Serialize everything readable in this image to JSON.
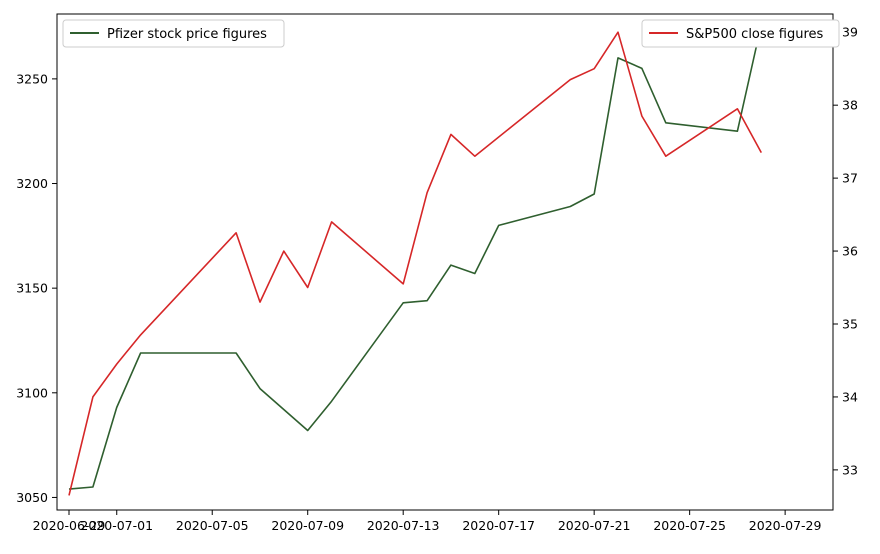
{
  "chart_data": {
    "type": "line",
    "x_axis": {
      "type": "date",
      "range": [
        "2020-06-29",
        "2020-07-30"
      ],
      "ticks": [
        "2020-06-29",
        "2020-07-01",
        "2020-07-05",
        "2020-07-09",
        "2020-07-13",
        "2020-07-17",
        "2020-07-21",
        "2020-07-25",
        "2020-07-29"
      ]
    },
    "y_left": {
      "range": [
        3044,
        3281
      ],
      "ticks": [
        3050,
        3100,
        3150,
        3200,
        3250
      ]
    },
    "y_right": {
      "range": [
        32.45,
        39.25
      ],
      "ticks": [
        33,
        34,
        35,
        36,
        37,
        38,
        39
      ]
    },
    "grid": false,
    "series": [
      {
        "name": "Pfizer stock price figures",
        "axis": "left",
        "color": "#2f5f2f",
        "legend_position": "top-left",
        "points": [
          [
            "2020-06-29",
            3054
          ],
          [
            "2020-06-30",
            3055
          ],
          [
            "2020-07-01",
            3093
          ],
          [
            "2020-07-02",
            3119
          ],
          [
            "2020-07-06",
            3119
          ],
          [
            "2020-07-07",
            3102
          ],
          [
            "2020-07-09",
            3082
          ],
          [
            "2020-07-10",
            3096
          ],
          [
            "2020-07-13",
            3143
          ],
          [
            "2020-07-14",
            3144
          ],
          [
            "2020-07-15",
            3161
          ],
          [
            "2020-07-16",
            3157
          ],
          [
            "2020-07-17",
            3180
          ],
          [
            "2020-07-20",
            3189
          ],
          [
            "2020-07-21",
            3195
          ],
          [
            "2020-07-22",
            3260
          ],
          [
            "2020-07-23",
            3255
          ],
          [
            "2020-07-24",
            3229
          ],
          [
            "2020-07-27",
            3225
          ],
          [
            "2020-07-28",
            3276
          ]
        ]
      },
      {
        "name": "S&P500 close figures",
        "axis": "right",
        "color": "#d62728",
        "legend_position": "top-right",
        "points": [
          [
            "2020-06-29",
            32.65
          ],
          [
            "2020-06-30",
            34.0
          ],
          [
            "2020-07-01",
            34.45
          ],
          [
            "2020-07-02",
            34.85
          ],
          [
            "2020-07-06",
            36.25
          ],
          [
            "2020-07-07",
            35.3
          ],
          [
            "2020-07-08",
            36.0
          ],
          [
            "2020-07-09",
            35.5
          ],
          [
            "2020-07-10",
            36.4
          ],
          [
            "2020-07-13",
            35.55
          ],
          [
            "2020-07-14",
            36.8
          ],
          [
            "2020-07-15",
            37.6
          ],
          [
            "2020-07-16",
            37.3
          ],
          [
            "2020-07-20",
            38.35
          ],
          [
            "2020-07-21",
            38.5
          ],
          [
            "2020-07-22",
            39.0
          ],
          [
            "2020-07-23",
            37.85
          ],
          [
            "2020-07-24",
            37.3
          ],
          [
            "2020-07-27",
            37.95
          ],
          [
            "2020-07-28",
            37.35
          ]
        ]
      }
    ]
  }
}
